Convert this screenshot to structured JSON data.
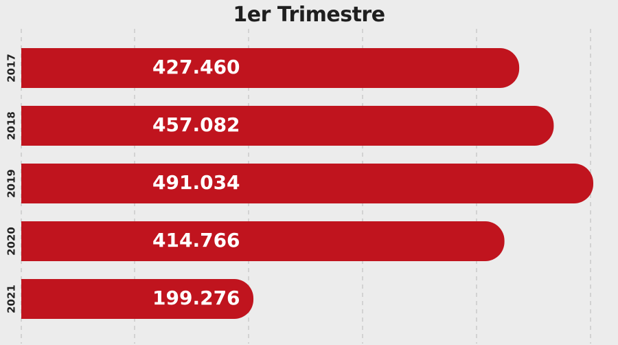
{
  "chart_data": {
    "type": "bar",
    "orientation": "horizontal",
    "title": "1er Trimestre",
    "categories": [
      "2017",
      "2018",
      "2019",
      "2020",
      "2021"
    ],
    "values": [
      427460,
      457082,
      491034,
      414766,
      199276
    ],
    "value_labels": [
      "427.460",
      "457.082",
      "491.034",
      "414.766",
      "199.276"
    ],
    "xlim": [
      0,
      491034
    ],
    "grid": true,
    "grid_style": "dashed vertical",
    "legend": "none",
    "bar_color": "#c0141e",
    "label_color": "#ffffff",
    "background_color": "#ececec",
    "grid_color": "#b7b7b7",
    "category_label_color": "#222222"
  }
}
